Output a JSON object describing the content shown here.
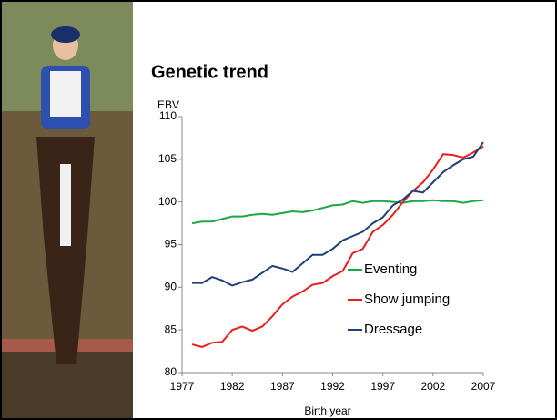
{
  "chart_data": {
    "type": "line",
    "title": "Genetic trend",
    "y_label": "EBV",
    "x_label": "Birth year",
    "x": [
      1978,
      1979,
      1980,
      1981,
      1982,
      1983,
      1984,
      1985,
      1986,
      1987,
      1988,
      1989,
      1990,
      1991,
      1992,
      1993,
      1994,
      1995,
      1996,
      1997,
      1998,
      1999,
      2000,
      2001,
      2002,
      2003,
      2004,
      2005,
      2006,
      2007
    ],
    "series": [
      {
        "name": "Eventing",
        "color": "#1aa845",
        "values": [
          97.5,
          97.7,
          97.7,
          98.0,
          98.3,
          98.3,
          98.5,
          98.6,
          98.5,
          98.7,
          98.9,
          98.8,
          99.0,
          99.3,
          99.6,
          99.7,
          100.1,
          99.9,
          100.1,
          100.1,
          100.0,
          99.9,
          100.1,
          100.1,
          100.2,
          100.1,
          100.1,
          99.9,
          100.1,
          100.2
        ]
      },
      {
        "name": "Show jumping",
        "color": "#ee1c1c",
        "values": [
          83.3,
          83.0,
          83.5,
          83.6,
          85.0,
          85.4,
          84.9,
          85.4,
          86.6,
          88.0,
          88.9,
          89.5,
          90.3,
          90.5,
          91.3,
          91.9,
          94.0,
          94.5,
          96.5,
          97.3,
          98.5,
          100.0,
          101.3,
          102.3,
          103.8,
          105.6,
          105.5,
          105.2,
          105.8,
          106.5
        ]
      },
      {
        "name": "Dressage",
        "color": "#1f3f78",
        "values": [
          90.5,
          90.5,
          91.2,
          90.8,
          90.2,
          90.6,
          90.9,
          91.7,
          92.5,
          92.2,
          91.8,
          92.8,
          93.8,
          93.8,
          94.5,
          95.5,
          96.0,
          96.5,
          97.5,
          98.2,
          99.6,
          100.3,
          101.3,
          101.1,
          102.3,
          103.5,
          104.3,
          105.0,
          105.3,
          107.0
        ]
      }
    ],
    "xlim": [
      1977,
      2007
    ],
    "xticks": [
      1977,
      1982,
      1987,
      1992,
      1997,
      2002,
      2007
    ],
    "ylim": [
      80,
      110
    ],
    "yticks": [
      80,
      85,
      90,
      95,
      100,
      105,
      110
    ],
    "grid": false
  }
}
